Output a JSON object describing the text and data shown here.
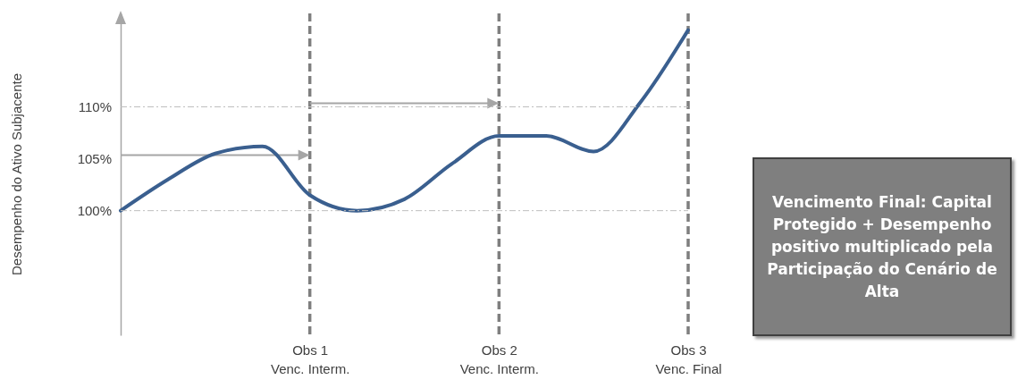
{
  "chart_data": {
    "type": "line",
    "ylabel": "Desempenho do Ativo Subjacente",
    "categories": [
      null,
      null,
      null,
      null,
      "Obs 1\nVenc. Interm.",
      null,
      null,
      null,
      "Obs 2\nVenc. Interm.",
      null,
      null,
      null,
      "Obs 3\nVenc. Final"
    ],
    "ylim": [
      88,
      119
    ],
    "yticks": [
      {
        "value": 100,
        "label": "100%"
      },
      {
        "value": 105,
        "label": "105%"
      },
      {
        "value": 110,
        "label": "110%"
      }
    ],
    "grid": "x",
    "series": [
      {
        "color": "#3a5f8f",
        "values": [
          100,
          103,
          105.5,
          106.2,
          101.5,
          100,
          101.1,
          104.5,
          107.2,
          107.2,
          105.7,
          110.5,
          117.4
        ]
      }
    ],
    "ref_lines": [
      {
        "axis": "y",
        "value": 100,
        "color": "#bfbfbf",
        "line_style": "dotted"
      },
      {
        "axis": "y",
        "value": 110,
        "color": "#bfbfbf",
        "line_style": "dotted"
      }
    ],
    "annotations": [
      "Vencimento Final: Capital Protegido + Desempenho positivo multiplicado pela Participação do Cenário de Alta"
    ]
  }
}
